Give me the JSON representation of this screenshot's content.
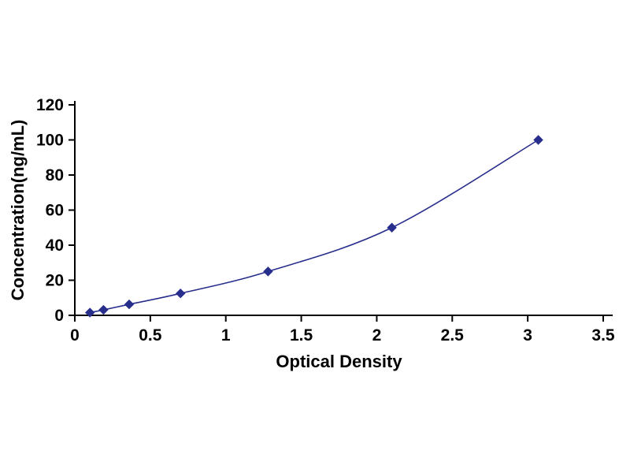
{
  "figure": {
    "background": "#ffffff"
  },
  "chart_data": {
    "type": "line",
    "title": "",
    "xlabel": "Optical Density",
    "ylabel": "Concentration(ng/mL)",
    "xlim": [
      0,
      3.5
    ],
    "ylim": [
      0,
      120
    ],
    "x_ticks": [
      0,
      0.5,
      1,
      1.5,
      2,
      2.5,
      3,
      3.5
    ],
    "x_tick_labels": [
      "0",
      "0.5",
      "1",
      "1.5",
      "2",
      "2.5",
      "3",
      "3.5"
    ],
    "y_ticks": [
      0,
      20,
      40,
      60,
      80,
      100,
      120
    ],
    "y_tick_labels": [
      "0",
      "20",
      "40",
      "60",
      "80",
      "100",
      "120"
    ],
    "grid": false,
    "legend": false,
    "marker": "diamond",
    "axis_color": "#000000",
    "text_color": "#000000",
    "series": [
      {
        "name": "standard-curve",
        "color": "#282e8c",
        "points": [
          {
            "x": 0.1,
            "y": 1.56
          },
          {
            "x": 0.19,
            "y": 3.12
          },
          {
            "x": 0.36,
            "y": 6.25
          },
          {
            "x": 0.7,
            "y": 12.5
          },
          {
            "x": 1.28,
            "y": 25
          },
          {
            "x": 2.1,
            "y": 50
          },
          {
            "x": 3.07,
            "y": 100
          }
        ]
      }
    ]
  }
}
